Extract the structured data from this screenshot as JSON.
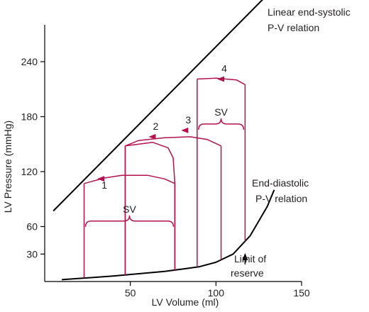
{
  "chart_data": {
    "type": "line",
    "xlabel": "LV Volume (ml)",
    "ylabel": "LV Pressure (mmHg)",
    "xlim": [
      0,
      150
    ],
    "ylim": [
      0,
      280
    ],
    "x_ticks": [
      {
        "value": 50,
        "label": "50"
      },
      {
        "value": 100,
        "label": "100"
      },
      {
        "value": 150,
        "label": "150"
      }
    ],
    "y_ticks": [
      {
        "value": 30,
        "label": "30"
      },
      {
        "value": 60,
        "label": "60"
      },
      {
        "value": 120,
        "label": "120"
      },
      {
        "value": 180,
        "label": "180"
      },
      {
        "value": 240,
        "label": "240"
      }
    ],
    "end_systolic_line": {
      "label_line1": "Linear end-systolic",
      "label_line2": "P-V relation",
      "points": [
        [
          5,
          77
        ],
        [
          130,
          313
        ]
      ]
    },
    "end_diastolic_curve": {
      "label_line1": "End-diastolic",
      "label_line2": "P-V relation",
      "points": [
        [
          10,
          2
        ],
        [
          40,
          6
        ],
        [
          70,
          11
        ],
        [
          90,
          16
        ],
        [
          100,
          21
        ],
        [
          110,
          30
        ],
        [
          120,
          50
        ],
        [
          130,
          82
        ],
        [
          134,
          100
        ]
      ]
    },
    "limit_of_reserve": {
      "label_line1": "Limit of",
      "label_line2": "reserve",
      "volume": 117
    },
    "loops": [
      {
        "label": "1",
        "edv": 76,
        "esv": 23,
        "ejection_pressure": 107,
        "ejection_path": [
          [
            76,
            107
          ],
          [
            70,
            112
          ],
          [
            60,
            116
          ],
          [
            45,
            116
          ],
          [
            35,
            113
          ],
          [
            23,
            107
          ]
        ],
        "arrow_at": [
          34,
          116
        ]
      },
      {
        "label": "2",
        "edv": 76,
        "esv": 47,
        "ejection_pressure": 148,
        "ejection_path": [
          [
            76,
            107
          ],
          [
            75,
            135
          ],
          [
            72,
            146
          ],
          [
            63,
            152
          ],
          [
            47,
            148
          ]
        ],
        "arrow_at": [
          64,
          158
        ]
      },
      {
        "label": "3",
        "edv": 103,
        "esv": 47,
        "ejection_pressure": 148,
        "ejection_path": [
          [
            103,
            148
          ],
          [
            95,
            155
          ],
          [
            85,
            158
          ],
          [
            70,
            157
          ],
          [
            55,
            154
          ],
          [
            47,
            148
          ]
        ],
        "arrow_at": [
          83,
          165
        ]
      },
      {
        "label": "4",
        "edv": 117,
        "esv": 89,
        "ejection_pressure": 221,
        "ejection_path": [
          [
            117,
            215
          ],
          [
            112,
            220
          ],
          [
            100,
            222
          ],
          [
            89,
            221
          ]
        ],
        "arrow_at": [
          104,
          221
        ]
      }
    ],
    "sv_braces": [
      {
        "label": "SV",
        "x_from": 23,
        "x_to": 76,
        "pressure": 66
      },
      {
        "label": "SV",
        "x_from": 89,
        "x_to": 117,
        "pressure": 172
      }
    ]
  }
}
